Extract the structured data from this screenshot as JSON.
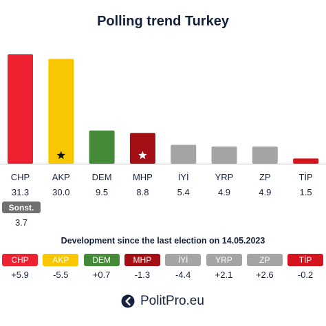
{
  "chart_data": {
    "type": "bar",
    "title": "Polling trend Turkey",
    "categories": [
      "CHP",
      "AKP",
      "DEM",
      "MHP",
      "İYİ",
      "YRP",
      "ZP",
      "TİP"
    ],
    "values": [
      31.3,
      30.0,
      9.5,
      8.8,
      5.4,
      4.9,
      4.9,
      1.5
    ],
    "value_labels": [
      "31.3",
      "30.0",
      "9.5",
      "8.8",
      "5.4",
      "4.9",
      "4.9",
      "1.5"
    ],
    "colors": [
      "#ee2130",
      "#f9c602",
      "#458a38",
      "#a30f14",
      "#a4a4a4",
      "#a4a4a4",
      "#a4a4a4",
      "#d5141f"
    ],
    "star_marked": [
      "AKP",
      "MHP"
    ],
    "ylim": [
      0,
      31.3
    ],
    "grid": false,
    "other": {
      "label": "Sonst.",
      "value": "3.7"
    }
  },
  "development": {
    "title": "Development since the last election on 14.05.2023",
    "parties": [
      "CHP",
      "AKP",
      "DEM",
      "MHP",
      "İYİ",
      "YRP",
      "ZP",
      "TİP"
    ],
    "changes": [
      "+5.9",
      "-5.5",
      "+0.7",
      "-1.3",
      "-4.4",
      "+2.1",
      "+2.6",
      "-0.2"
    ],
    "colors": [
      "#ee2130",
      "#f9c602",
      "#458a38",
      "#a30f14",
      "#a4a4a4",
      "#a4a4a4",
      "#a4a4a4",
      "#d5141f"
    ]
  },
  "brand": {
    "name": "PolitPro.eu",
    "icon": "politpro-logo-icon"
  }
}
